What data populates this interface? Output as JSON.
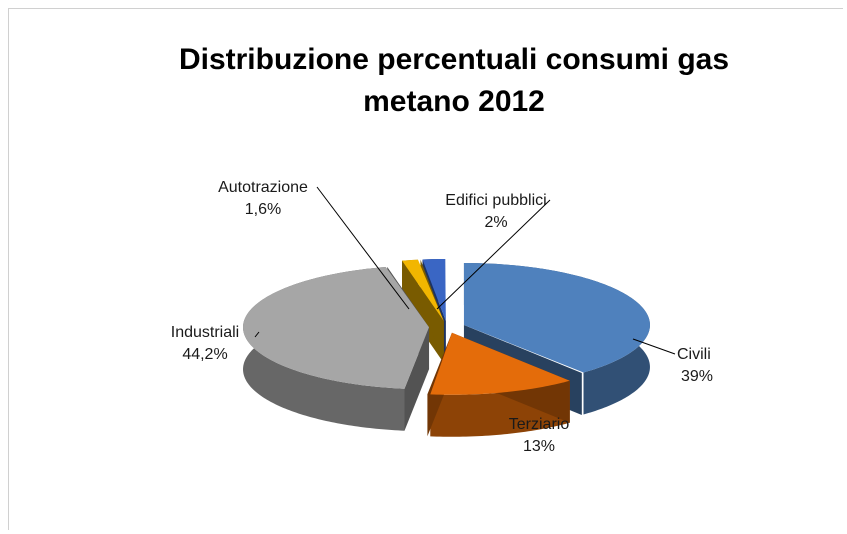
{
  "chart_data": {
    "type": "pie",
    "style": "3d-exploded",
    "title_lines": [
      "Distribuzione percentuali consumi gas",
      "metano 2012"
    ],
    "slices": [
      {
        "category": "Civili",
        "value": 39,
        "label": "39%",
        "color": "#4f81bd"
      },
      {
        "category": "Terziario",
        "value": 13,
        "label": "13%",
        "color": "#e46c0a"
      },
      {
        "category": "Industriali",
        "value": 44.2,
        "label": "44,2%",
        "color": "#a6a6a6"
      },
      {
        "category": "Autotrazione",
        "value": 1.6,
        "label": "1,6%",
        "color": "#f2b600"
      },
      {
        "category": "Edifici pubblici",
        "value": 2,
        "label": "2%",
        "color": "#3a66c4"
      }
    ],
    "legend": "none"
  }
}
